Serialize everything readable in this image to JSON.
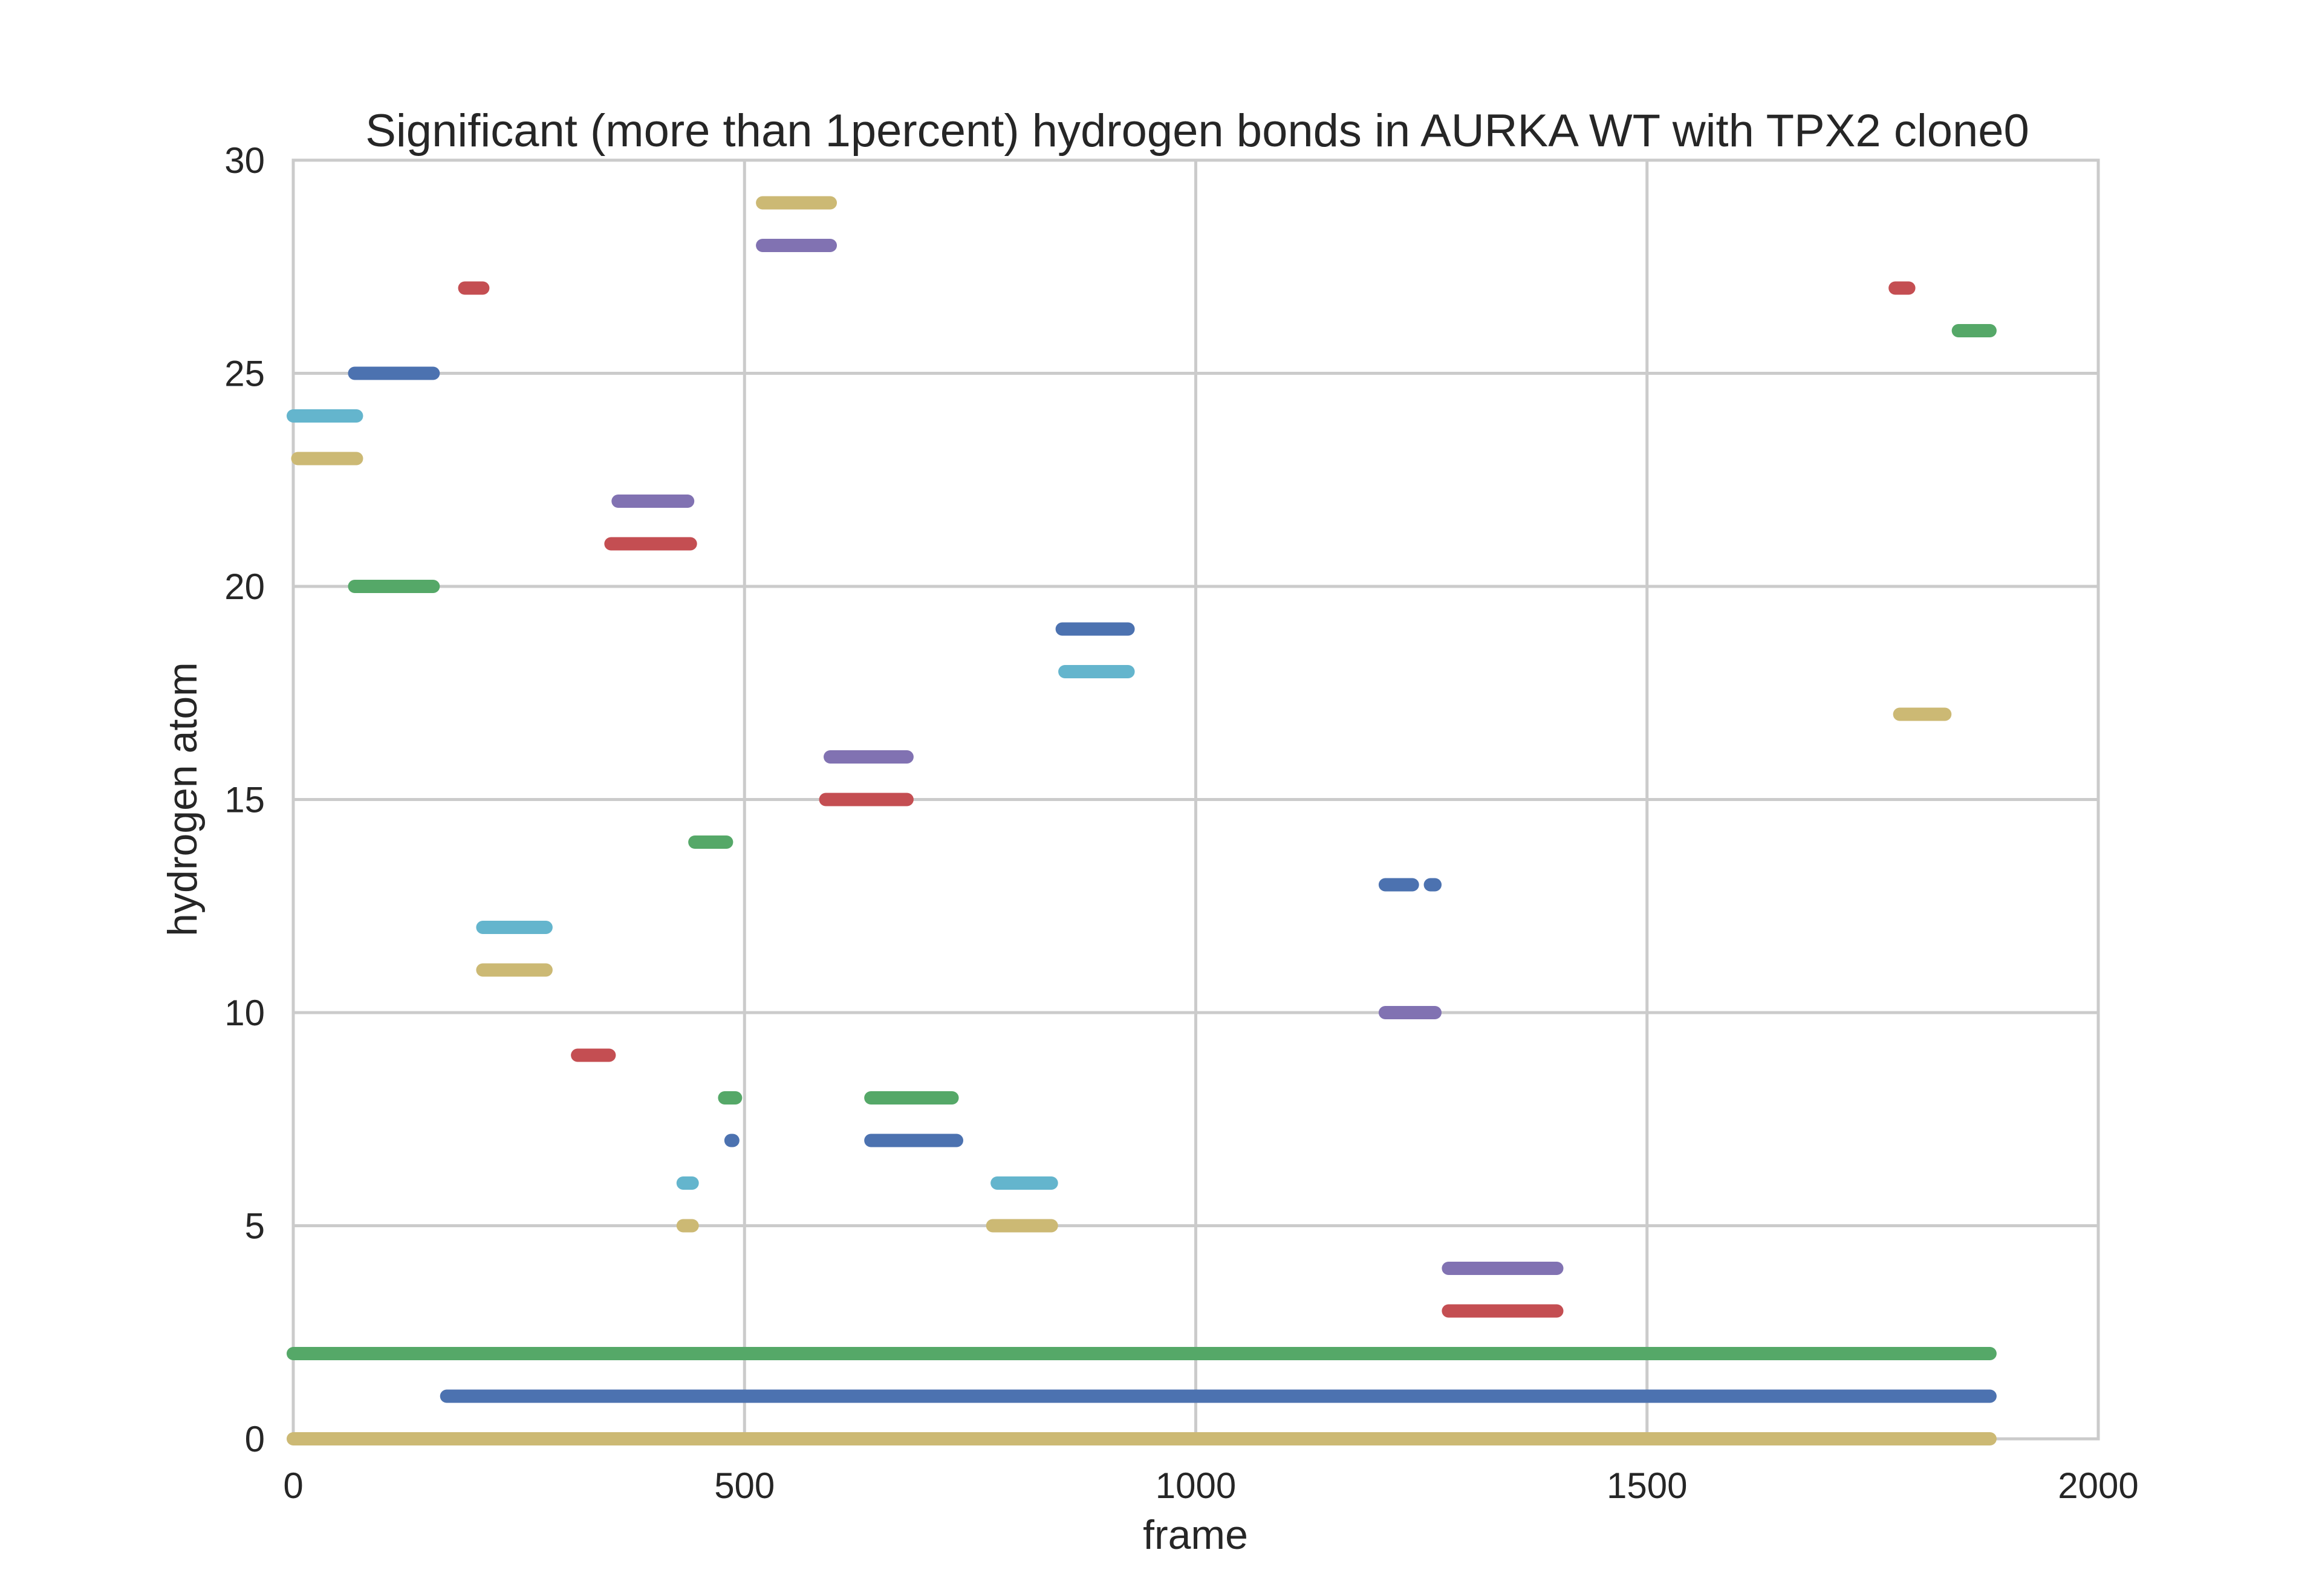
{
  "chart_data": {
    "type": "scatter",
    "title": "Significant (more than 1percent) hydrogen bonds in AURKA WT with TPX2 clone0",
    "xlabel": "frame",
    "ylabel": "hydrogen atom",
    "xlim": [
      0,
      2000
    ],
    "ylim": [
      0,
      30
    ],
    "xticks": [
      "0",
      "500",
      "1000",
      "1500",
      "2000"
    ],
    "yticks": [
      "0",
      "5",
      "10",
      "15",
      "20",
      "25",
      "30"
    ],
    "grid": true,
    "legend": "none",
    "colors": {
      "blue": "#4c72b0",
      "green": "#55a868",
      "red": "#c44e52",
      "purple": "#8172b2",
      "yellow": "#ccb974",
      "cyan": "#64b5cd"
    },
    "segments": [
      {
        "y": 0,
        "color": "yellow",
        "x": [
          0,
          1880
        ]
      },
      {
        "y": 1,
        "color": "blue",
        "x": [
          170,
          1880
        ]
      },
      {
        "y": 2,
        "color": "green",
        "x": [
          0,
          1880
        ]
      },
      {
        "y": 3,
        "color": "red",
        "x": [
          1280,
          1400
        ]
      },
      {
        "y": 4,
        "color": "purple",
        "x": [
          1280,
          1400
        ]
      },
      {
        "y": 5,
        "color": "yellow",
        "x": [
          432,
          442
        ]
      },
      {
        "y": 5,
        "color": "yellow",
        "x": [
          775,
          840
        ]
      },
      {
        "y": 6,
        "color": "cyan",
        "x": [
          432,
          442
        ]
      },
      {
        "y": 6,
        "color": "cyan",
        "x": [
          780,
          840
        ]
      },
      {
        "y": 7,
        "color": "blue",
        "x": [
          485,
          487
        ]
      },
      {
        "y": 7,
        "color": "blue",
        "x": [
          640,
          735
        ]
      },
      {
        "y": 8,
        "color": "green",
        "x": [
          478,
          490
        ]
      },
      {
        "y": 8,
        "color": "green",
        "x": [
          640,
          730
        ]
      },
      {
        "y": 9,
        "color": "red",
        "x": [
          315,
          350
        ]
      },
      {
        "y": 10,
        "color": "purple",
        "x": [
          1210,
          1265
        ]
      },
      {
        "y": 11,
        "color": "yellow",
        "x": [
          210,
          280
        ]
      },
      {
        "y": 12,
        "color": "cyan",
        "x": [
          210,
          280
        ]
      },
      {
        "y": 13,
        "color": "blue",
        "x": [
          1210,
          1240
        ]
      },
      {
        "y": 13,
        "color": "blue",
        "x": [
          1260,
          1265
        ]
      },
      {
        "y": 14,
        "color": "green",
        "x": [
          445,
          480
        ]
      },
      {
        "y": 15,
        "color": "red",
        "x": [
          590,
          680
        ]
      },
      {
        "y": 16,
        "color": "purple",
        "x": [
          595,
          680
        ]
      },
      {
        "y": 17,
        "color": "yellow",
        "x": [
          1780,
          1830
        ]
      },
      {
        "y": 18,
        "color": "cyan",
        "x": [
          855,
          925
        ]
      },
      {
        "y": 19,
        "color": "blue",
        "x": [
          852,
          925
        ]
      },
      {
        "y": 20,
        "color": "green",
        "x": [
          68,
          155
        ]
      },
      {
        "y": 21,
        "color": "red",
        "x": [
          352,
          440
        ]
      },
      {
        "y": 22,
        "color": "purple",
        "x": [
          360,
          437
        ]
      },
      {
        "y": 23,
        "color": "yellow",
        "x": [
          5,
          70
        ]
      },
      {
        "y": 24,
        "color": "cyan",
        "x": [
          0,
          70
        ]
      },
      {
        "y": 25,
        "color": "blue",
        "x": [
          68,
          155
        ]
      },
      {
        "y": 26,
        "color": "green",
        "x": [
          1845,
          1880
        ]
      },
      {
        "y": 27,
        "color": "red",
        "x": [
          190,
          210
        ]
      },
      {
        "y": 27,
        "color": "red",
        "x": [
          1775,
          1790
        ]
      },
      {
        "y": 28,
        "color": "purple",
        "x": [
          520,
          595
        ]
      },
      {
        "y": 29,
        "color": "yellow",
        "x": [
          520,
          595
        ]
      }
    ]
  }
}
